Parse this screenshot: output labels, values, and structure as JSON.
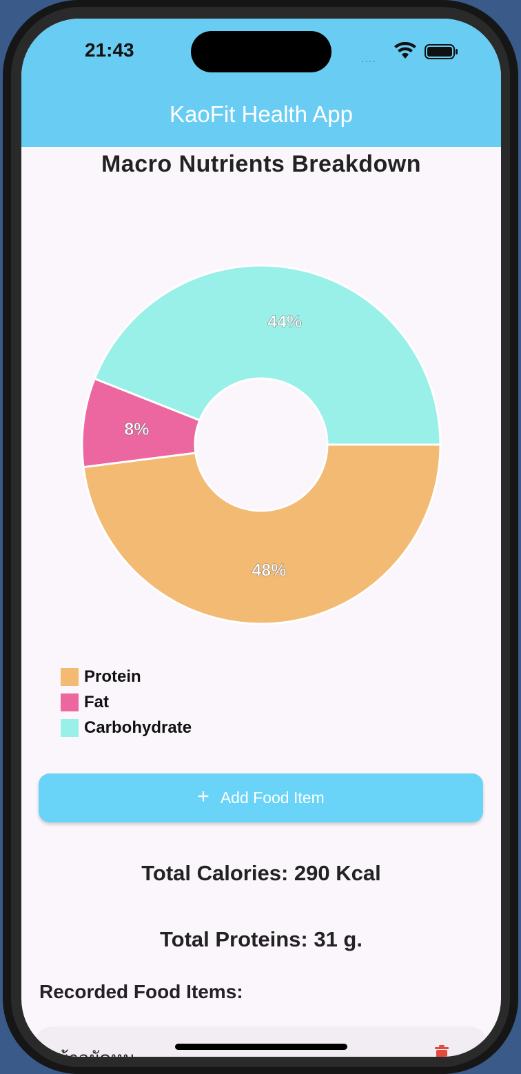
{
  "status_bar": {
    "time": "21:43",
    "signal": "....",
    "icons": [
      "wifi-icon",
      "battery-icon"
    ]
  },
  "app_bar": {
    "title": "KaoFit Health App",
    "color": "#69ccf3"
  },
  "chart_section": {
    "title": "Macro Nutrients Breakdown"
  },
  "chart_data": {
    "type": "pie",
    "title": "Macro Nutrients Breakdown",
    "donut": true,
    "legend_position": "bottom-left",
    "series": [
      {
        "name": "Protein",
        "value": 48,
        "label": "48%",
        "color": "#f3ba73"
      },
      {
        "name": "Fat",
        "value": 8,
        "label": "8%",
        "color": "#ec67a0"
      },
      {
        "name": "Carbohydrate",
        "value": 44,
        "label": "44%",
        "color": "#99f0e8"
      }
    ]
  },
  "add_button": {
    "label": "Add Food Item",
    "icon": "plus-icon"
  },
  "stats": {
    "total_calories": "Total Calories: 290 Kcal",
    "total_proteins": "Total Proteins: 31 g."
  },
  "food_list": {
    "heading": "Recorded Food Items:",
    "items": [
      {
        "name": "ข้าวผัดหม",
        "action_icon": "delete-icon"
      }
    ]
  }
}
